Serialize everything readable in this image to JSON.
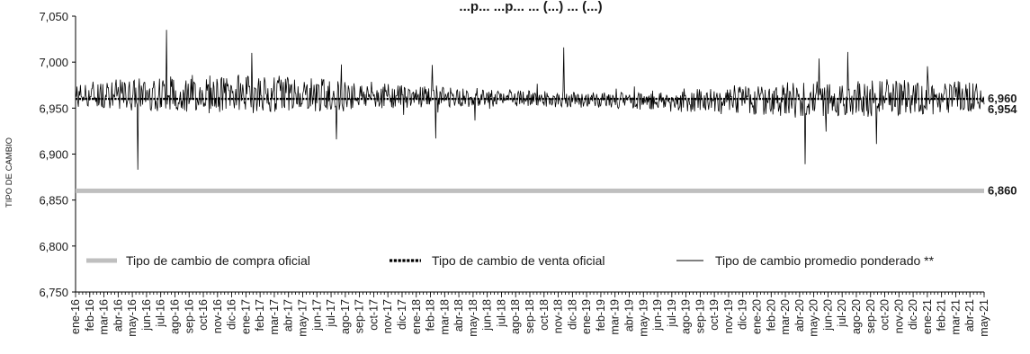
{
  "chart_data": {
    "type": "line",
    "title": "...p... ...p... ... (...) ... (...)",
    "ylabel": "TIPO DE CAMBIO",
    "xlabel": "",
    "ylim": [
      6.75,
      7.05
    ],
    "yticks": [
      "6,750",
      "6,800",
      "6,850",
      "6,900",
      "6,950",
      "7,000",
      "7,050"
    ],
    "yticks_values": [
      6.75,
      6.8,
      6.85,
      6.9,
      6.95,
      7.0,
      7.05
    ],
    "categories": [
      "ene-16",
      "feb-16",
      "mar-16",
      "abr-16",
      "may-16",
      "jun-16",
      "jul-16",
      "ago-16",
      "sep-16",
      "oct-16",
      "nov-16",
      "dic-16",
      "ene-17",
      "feb-17",
      "mar-17",
      "abr-17",
      "may-17",
      "jun-17",
      "jul-17",
      "ago-17",
      "sep-17",
      "oct-17",
      "nov-17",
      "dic-17",
      "ene-18",
      "feb-18",
      "mar-18",
      "abr-18",
      "may-18",
      "jun-18",
      "jul-18",
      "ago-18",
      "sep-18",
      "oct-18",
      "nov-18",
      "dic-18",
      "ene-19",
      "feb-19",
      "mar-19",
      "abr-19",
      "may-19",
      "jun-19",
      "jul-19",
      "ago-19",
      "sep-19",
      "oct-19",
      "nov-19",
      "dic-19",
      "ene-20",
      "feb-20",
      "mar-20",
      "abr-20",
      "may-20",
      "jun-20",
      "jul-20",
      "ago-20",
      "sep-20",
      "oct-20",
      "nov-20",
      "dic-20",
      "ene-21",
      "feb-21",
      "mar-21",
      "abr-21",
      "may-21"
    ],
    "grid": false,
    "legend_position": "bottom-inside",
    "series": [
      {
        "name": "Tipo de cambio de compra oficial",
        "style": "thick-gray",
        "color": "#bfbfbf",
        "constant": 6.86,
        "end_label": "6,860"
      },
      {
        "name": "Tipo de cambio de venta oficial",
        "style": "dotted-black",
        "color": "#000000",
        "constant": 6.96,
        "end_label": "6,960"
      },
      {
        "name": "Tipo de cambio promedio ponderado **",
        "style": "thin-black",
        "color": "#000000",
        "baseline": 6.962,
        "end_label": "6,954",
        "notable_values": [
          {
            "x": "may-16",
            "y": 6.883
          },
          {
            "x": "jul-16",
            "y": 7.035
          },
          {
            "x": "ene-17",
            "y": 7.01
          },
          {
            "x": "jul-17",
            "y": 6.916
          },
          {
            "x": "feb-18",
            "y": 6.917
          },
          {
            "x": "nov-18",
            "y": 7.016
          },
          {
            "x": "abr-20",
            "y": 6.889
          },
          {
            "x": "may-20",
            "y": 7.004
          },
          {
            "x": "jul-20",
            "y": 7.011
          },
          {
            "x": "sep-20",
            "y": 6.911
          }
        ]
      }
    ]
  }
}
